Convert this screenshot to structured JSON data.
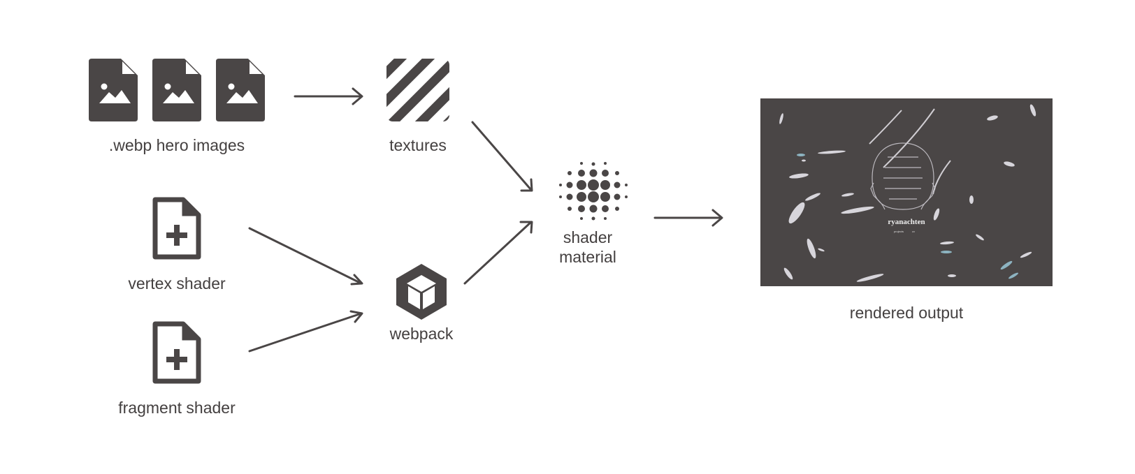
{
  "colors": {
    "ink": "#4a4646",
    "text": "#444040",
    "background": "#ffffff",
    "preview_bg": "#4a4646"
  },
  "nodes": {
    "hero_images": {
      "label": ".webp hero images",
      "icon": "image-file-icon"
    },
    "textures": {
      "label": "textures",
      "icon": "striped-texture-icon"
    },
    "vertex_shader": {
      "label": "vertex shader",
      "icon": "file-plus-icon"
    },
    "fragment_shader": {
      "label": "fragment shader",
      "icon": "file-plus-icon"
    },
    "webpack": {
      "label": "webpack",
      "icon": "webpack-cube-icon"
    },
    "shader_material": {
      "label_line1": "shader",
      "label_line2": "material",
      "icon": "dot-sphere-icon"
    },
    "rendered_output": {
      "label": "rendered output",
      "preview_title": "ryanachten",
      "preview_nav_1": "projects",
      "preview_nav_2": "cv"
    }
  },
  "edges": [
    {
      "from": "hero_images",
      "to": "textures"
    },
    {
      "from": "textures",
      "to": "shader_material"
    },
    {
      "from": "vertex_shader",
      "to": "webpack"
    },
    {
      "from": "fragment_shader",
      "to": "webpack"
    },
    {
      "from": "webpack",
      "to": "shader_material"
    },
    {
      "from": "shader_material",
      "to": "rendered_output"
    }
  ]
}
